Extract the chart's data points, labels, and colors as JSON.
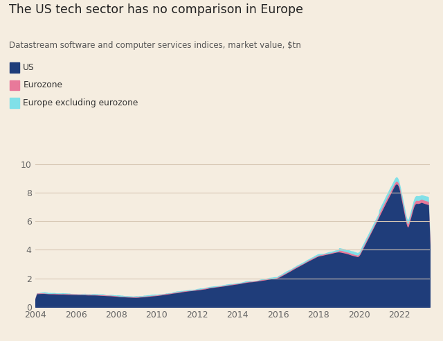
{
  "title": "The US tech sector has no comparison in Europe",
  "subtitle": "Datastream software and computer services indices, market value, $tn",
  "background_color": "#f5ede0",
  "us_color": "#1f3d7a",
  "eurozone_color": "#e8799a",
  "europe_ex_color": "#80e0e8",
  "grid_color": "#d8c8b5",
  "ylim": [
    0,
    10.5
  ],
  "yticks": [
    0,
    2,
    4,
    6,
    8,
    10
  ],
  "xticks": [
    2004,
    2006,
    2008,
    2010,
    2012,
    2014,
    2016,
    2018,
    2020,
    2022
  ],
  "year_start": 2004,
  "year_end": 2023.5,
  "legend": [
    "US",
    "Eurozone",
    "Europe excluding eurozone"
  ]
}
